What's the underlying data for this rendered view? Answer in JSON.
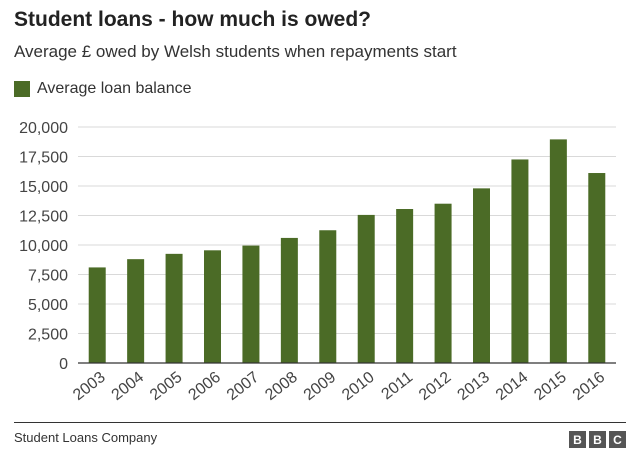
{
  "header": {
    "title": "Student loans - how much is owed?",
    "subtitle": "Average £ owed by Welsh students when repayments start"
  },
  "footer": {
    "source": "Student Loans Company",
    "logo": [
      "B",
      "B",
      "C"
    ]
  },
  "colors": {
    "bar": "#4b6b26",
    "grid": "#d9d9d9",
    "axis": "#333333",
    "logo_bg": "#555555"
  },
  "chart_data": {
    "type": "bar",
    "title": "Student loans - how much is owed?",
    "subtitle": "Average £ owed by Welsh students when repayments start",
    "xlabel": "",
    "ylabel": "",
    "categories": [
      "2003",
      "2004",
      "2005",
      "2006",
      "2007",
      "2008",
      "2009",
      "2010",
      "2011",
      "2012",
      "2013",
      "2014",
      "2015",
      "2016"
    ],
    "series": [
      {
        "name": "Average loan balance",
        "values": [
          8100,
          8800,
          9250,
          9550,
          9950,
          10600,
          11250,
          12550,
          13050,
          13500,
          14800,
          17250,
          18950,
          16100
        ]
      }
    ],
    "ylim": [
      0,
      20000
    ],
    "yticks": [
      0,
      2500,
      5000,
      7500,
      10000,
      12500,
      15000,
      17500,
      20000
    ],
    "ytick_labels": [
      "0",
      "2,500",
      "5,000",
      "7,500",
      "10,000",
      "12,500",
      "15,000",
      "17,500",
      "20,000"
    ],
    "grid": true,
    "legend": "top-left"
  }
}
